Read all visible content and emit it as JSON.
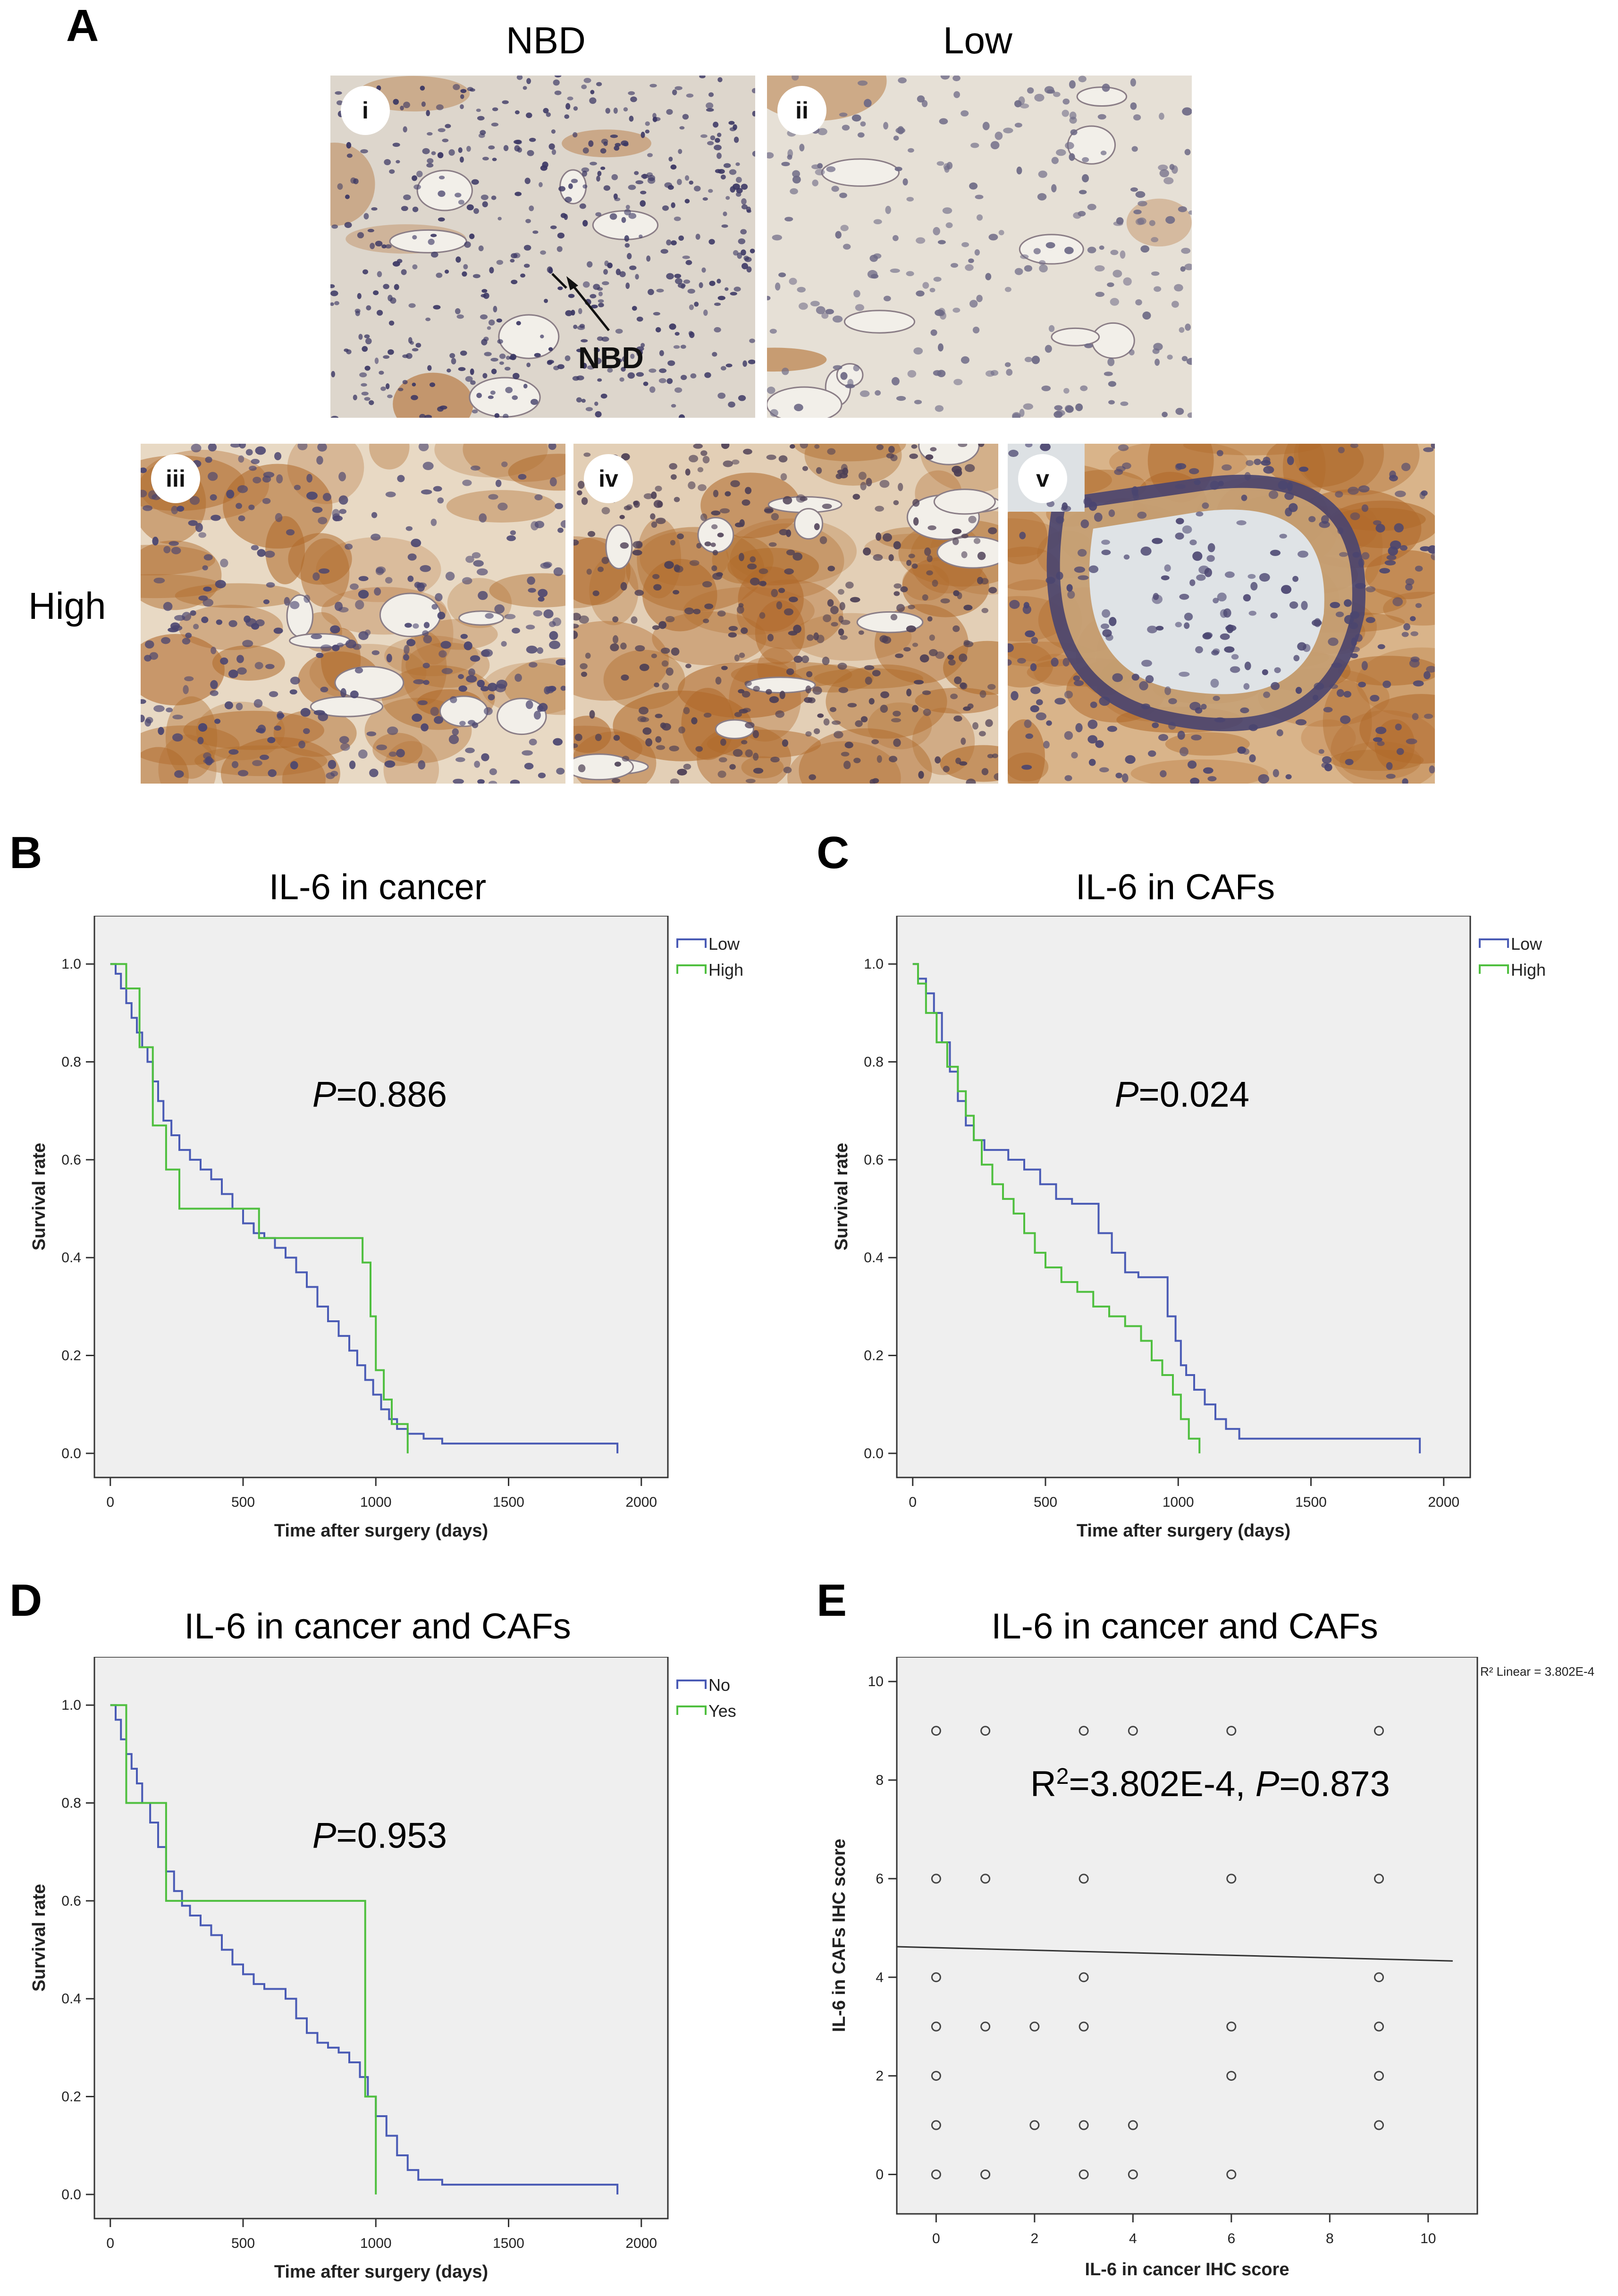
{
  "panel_a": {
    "letter": "A",
    "col_labels": [
      "NBD",
      "Low"
    ],
    "row_label": "High",
    "images": [
      {
        "label": "i",
        "annotation": "NBD",
        "stain": "nbd"
      },
      {
        "label": "ii",
        "stain": "low"
      },
      {
        "label": "iii",
        "stain": "high1"
      },
      {
        "label": "iv",
        "stain": "high2"
      },
      {
        "label": "v",
        "stain": "high3"
      }
    ],
    "colors": {
      "hematoxylin": "#3b3a6b",
      "dab": "#b06a2a",
      "background": "#e9e3dc"
    }
  },
  "chart_data": [
    {
      "id": "B",
      "letter": "B",
      "type": "line",
      "title": "IL-6 in cancer",
      "xlabel": "Time after surgery (days)",
      "ylabel": "Survival rate",
      "xlim": [
        0,
        2000
      ],
      "ylim": [
        0,
        1.0
      ],
      "xticks": [
        0,
        500,
        1000,
        1500,
        2000
      ],
      "yticks": [
        0.0,
        0.2,
        0.4,
        0.6,
        0.8,
        1.0
      ],
      "tick_labels_y": [
        "0.0",
        "0.2",
        "0.4",
        "0.6",
        "0.8",
        "1.0"
      ],
      "annotation": {
        "italic": "P",
        "text": "=0.886"
      },
      "legend_position": "top-right",
      "series": [
        {
          "name": "Low",
          "color": "#4a5bb5",
          "step": true,
          "x": [
            0,
            20,
            40,
            60,
            80,
            100,
            120,
            140,
            160,
            180,
            200,
            230,
            260,
            300,
            340,
            380,
            420,
            460,
            500,
            540,
            580,
            620,
            660,
            700,
            740,
            780,
            820,
            860,
            900,
            930,
            960,
            990,
            1020,
            1050,
            1080,
            1120,
            1180,
            1250,
            1400,
            1600,
            1900,
            1910
          ],
          "y": [
            1.0,
            0.98,
            0.95,
            0.92,
            0.89,
            0.86,
            0.83,
            0.8,
            0.76,
            0.72,
            0.68,
            0.65,
            0.62,
            0.6,
            0.58,
            0.56,
            0.53,
            0.5,
            0.47,
            0.45,
            0.44,
            0.42,
            0.4,
            0.37,
            0.34,
            0.3,
            0.27,
            0.24,
            0.21,
            0.18,
            0.15,
            0.12,
            0.09,
            0.07,
            0.05,
            0.04,
            0.03,
            0.02,
            0.02,
            0.02,
            0.02,
            0.0
          ]
        },
        {
          "name": "High",
          "color": "#4fbf3f",
          "step": true,
          "x": [
            0,
            60,
            110,
            160,
            210,
            260,
            430,
            560,
            620,
            950,
            980,
            1000,
            1030,
            1060,
            1100,
            1120
          ],
          "y": [
            1.0,
            0.95,
            0.83,
            0.67,
            0.58,
            0.5,
            0.5,
            0.44,
            0.44,
            0.39,
            0.28,
            0.17,
            0.11,
            0.06,
            0.06,
            0.0
          ]
        }
      ]
    },
    {
      "id": "C",
      "letter": "C",
      "type": "line",
      "title": "IL-6 in CAFs",
      "xlabel": "Time after surgery (days)",
      "ylabel": "Survival rate",
      "xlim": [
        0,
        2000
      ],
      "ylim": [
        0,
        1.0
      ],
      "xticks": [
        0,
        500,
        1000,
        1500,
        2000
      ],
      "yticks": [
        0.0,
        0.2,
        0.4,
        0.6,
        0.8,
        1.0
      ],
      "tick_labels_y": [
        "0.0",
        "0.2",
        "0.4",
        "0.6",
        "0.8",
        "1.0"
      ],
      "annotation": {
        "italic": "P",
        "text": "=0.024"
      },
      "legend_position": "top-right",
      "series": [
        {
          "name": "Low",
          "color": "#4a5bb5",
          "step": true,
          "x": [
            0,
            20,
            50,
            80,
            110,
            140,
            170,
            200,
            230,
            270,
            310,
            360,
            420,
            480,
            540,
            600,
            650,
            700,
            750,
            800,
            850,
            900,
            960,
            990,
            1010,
            1030,
            1060,
            1100,
            1140,
            1180,
            1230,
            1400,
            1600,
            1900,
            1910
          ],
          "y": [
            1.0,
            0.97,
            0.94,
            0.9,
            0.84,
            0.78,
            0.72,
            0.67,
            0.64,
            0.62,
            0.62,
            0.6,
            0.58,
            0.55,
            0.52,
            0.51,
            0.51,
            0.45,
            0.41,
            0.37,
            0.36,
            0.36,
            0.28,
            0.23,
            0.18,
            0.16,
            0.13,
            0.1,
            0.07,
            0.05,
            0.03,
            0.03,
            0.03,
            0.03,
            0.0
          ]
        },
        {
          "name": "High",
          "color": "#4fbf3f",
          "step": true,
          "x": [
            0,
            20,
            50,
            90,
            130,
            170,
            200,
            230,
            260,
            300,
            340,
            380,
            420,
            460,
            500,
            560,
            620,
            680,
            740,
            800,
            860,
            900,
            940,
            980,
            1010,
            1040,
            1080
          ],
          "y": [
            1.0,
            0.96,
            0.9,
            0.84,
            0.79,
            0.74,
            0.69,
            0.64,
            0.59,
            0.55,
            0.52,
            0.49,
            0.45,
            0.41,
            0.38,
            0.35,
            0.33,
            0.3,
            0.28,
            0.26,
            0.23,
            0.19,
            0.16,
            0.12,
            0.07,
            0.03,
            0.0
          ]
        }
      ]
    },
    {
      "id": "D",
      "letter": "D",
      "type": "line",
      "title": "IL-6 in cancer and CAFs",
      "xlabel": "Time after surgery (days)",
      "ylabel": "Survival rate",
      "xlim": [
        0,
        2000
      ],
      "ylim": [
        0,
        1.0
      ],
      "xticks": [
        0,
        500,
        1000,
        1500,
        2000
      ],
      "yticks": [
        0.0,
        0.2,
        0.4,
        0.6,
        0.8,
        1.0
      ],
      "tick_labels_y": [
        "0.0",
        "0.2",
        "0.4",
        "0.6",
        "0.8",
        "1.0"
      ],
      "annotation": {
        "italic": "P",
        "text": "=0.953"
      },
      "legend_position": "top-right",
      "series": [
        {
          "name": "No",
          "color": "#4a5bb5",
          "step": true,
          "x": [
            0,
            20,
            40,
            60,
            80,
            100,
            120,
            150,
            180,
            210,
            240,
            270,
            300,
            340,
            380,
            420,
            460,
            500,
            540,
            580,
            620,
            660,
            700,
            740,
            780,
            820,
            860,
            900,
            940,
            970,
            1000,
            1040,
            1080,
            1120,
            1160,
            1250,
            1400,
            1600,
            1900,
            1910
          ],
          "y": [
            1.0,
            0.97,
            0.93,
            0.9,
            0.87,
            0.84,
            0.8,
            0.76,
            0.71,
            0.66,
            0.62,
            0.59,
            0.57,
            0.55,
            0.53,
            0.5,
            0.47,
            0.45,
            0.43,
            0.42,
            0.42,
            0.4,
            0.36,
            0.33,
            0.31,
            0.3,
            0.29,
            0.27,
            0.24,
            0.2,
            0.16,
            0.12,
            0.08,
            0.05,
            0.03,
            0.02,
            0.02,
            0.02,
            0.02,
            0.0
          ]
        },
        {
          "name": "Yes",
          "color": "#4fbf3f",
          "step": true,
          "x": [
            0,
            60,
            120,
            210,
            920,
            960,
            990,
            1000
          ],
          "y": [
            1.0,
            0.8,
            0.8,
            0.6,
            0.6,
            0.2,
            0.2,
            0.0
          ]
        }
      ]
    },
    {
      "id": "E",
      "letter": "E",
      "type": "scatter",
      "title": "IL-6 in cancer and CAFs",
      "xlabel": "IL-6 in cancer IHC score",
      "ylabel": "IL-6 in CAFs IHC score",
      "xlim": [
        -0.8,
        11
      ],
      "ylim": [
        -0.8,
        10.5
      ],
      "xticks": [
        0,
        2,
        4,
        6,
        8,
        10
      ],
      "yticks": [
        0,
        2,
        4,
        6,
        8,
        10
      ],
      "annotation": {
        "prefix": "R",
        "sup": "2",
        "mid": "=3.802E-4, ",
        "italic": "P",
        "text": "=0.873"
      },
      "fit_label": "R² Linear = 3.802E-4",
      "fit_line": {
        "x": [
          -0.8,
          10.5
        ],
        "y": [
          4.62,
          4.33
        ]
      },
      "points": [
        [
          0,
          9
        ],
        [
          1,
          9
        ],
        [
          3,
          9
        ],
        [
          4,
          9
        ],
        [
          6,
          9
        ],
        [
          9,
          9
        ],
        [
          0,
          6
        ],
        [
          1,
          6
        ],
        [
          3,
          6
        ],
        [
          6,
          6
        ],
        [
          9,
          6
        ],
        [
          0,
          4
        ],
        [
          3,
          4
        ],
        [
          9,
          4
        ],
        [
          0,
          3
        ],
        [
          1,
          3
        ],
        [
          2,
          3
        ],
        [
          3,
          3
        ],
        [
          6,
          3
        ],
        [
          9,
          3
        ],
        [
          0,
          2
        ],
        [
          6,
          2
        ],
        [
          9,
          2
        ],
        [
          0,
          1
        ],
        [
          2,
          1
        ],
        [
          3,
          1
        ],
        [
          4,
          1
        ],
        [
          9,
          1
        ],
        [
          0,
          0
        ],
        [
          1,
          0
        ],
        [
          3,
          0
        ],
        [
          4,
          0
        ],
        [
          6,
          0
        ]
      ]
    }
  ]
}
